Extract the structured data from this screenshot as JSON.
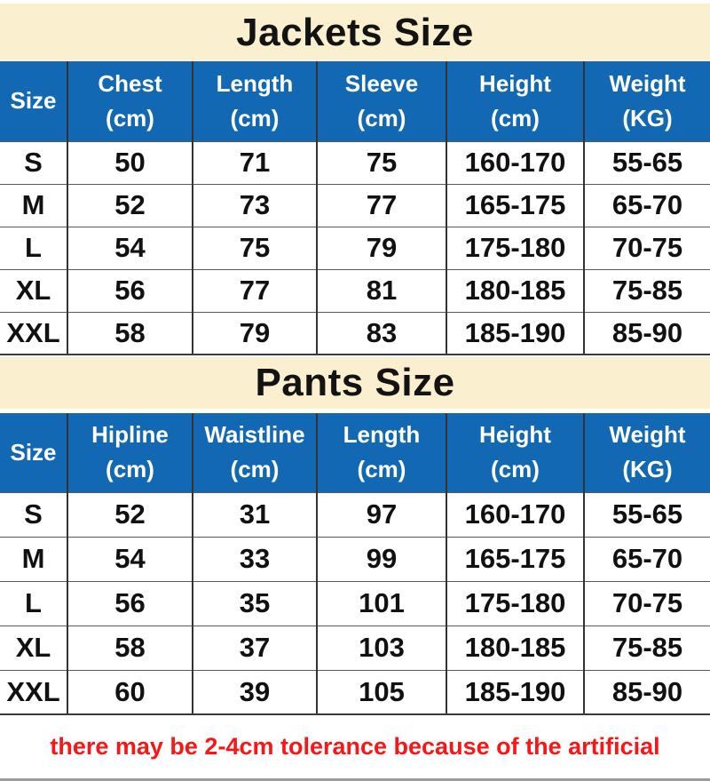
{
  "colors": {
    "header_bg": "#1268B3",
    "title_bg": "#FAF0D0",
    "note_red": "#F91616"
  },
  "footer": {
    "note": "there may be 2-4cm tolerance because of the artificial"
  },
  "chart_data": [
    {
      "type": "table",
      "title": "Jackets Size",
      "columns": [
        {
          "label": "Size",
          "unit": ""
        },
        {
          "label": "Chest",
          "unit": "(cm)"
        },
        {
          "label": "Length",
          "unit": "(cm)"
        },
        {
          "label": "Sleeve",
          "unit": "(cm)"
        },
        {
          "label": "Height",
          "unit": "(cm)"
        },
        {
          "label": "Weight",
          "unit": "(KG)"
        }
      ],
      "rows": [
        [
          "S",
          "50",
          "71",
          "75",
          "160-170",
          "55-65"
        ],
        [
          "M",
          "52",
          "73",
          "77",
          "165-175",
          "65-70"
        ],
        [
          "L",
          "54",
          "75",
          "79",
          "175-180",
          "70-75"
        ],
        [
          "XL",
          "56",
          "77",
          "81",
          "180-185",
          "75-85"
        ],
        [
          "XXL",
          "58",
          "79",
          "83",
          "185-190",
          "85-90"
        ]
      ]
    },
    {
      "type": "table",
      "title": "Pants Size",
      "columns": [
        {
          "label": "Size",
          "unit": ""
        },
        {
          "label": "Hipline",
          "unit": "(cm)"
        },
        {
          "label": "Waistline",
          "unit": "(cm)"
        },
        {
          "label": "Length",
          "unit": "(cm)"
        },
        {
          "label": "Height",
          "unit": "(cm)"
        },
        {
          "label": "Weight",
          "unit": "(KG)"
        }
      ],
      "rows": [
        [
          "S",
          "52",
          "31",
          "97",
          "160-170",
          "55-65"
        ],
        [
          "M",
          "54",
          "33",
          "99",
          "165-175",
          "65-70"
        ],
        [
          "L",
          "56",
          "35",
          "101",
          "175-180",
          "70-75"
        ],
        [
          "XL",
          "58",
          "37",
          "103",
          "180-185",
          "75-85"
        ],
        [
          "XXL",
          "60",
          "39",
          "105",
          "185-190",
          "85-90"
        ]
      ]
    }
  ]
}
